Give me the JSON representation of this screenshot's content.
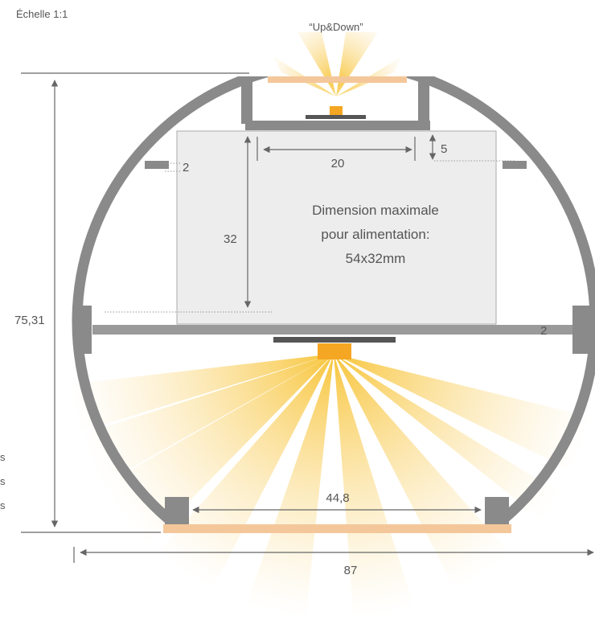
{
  "scale": "Échelle 1:1",
  "title": "“Up&Down”",
  "dimensions": {
    "width_inner": "20",
    "top_gap": "5",
    "slot": "2",
    "height_inner": "32",
    "height_total": "75,31",
    "plate": "2",
    "bottom_width": "44,8",
    "width_total": "87"
  },
  "box_label": [
    "Dimension maximale",
    "pour alimentation:",
    "54x32mm"
  ],
  "edge_text": [
    "s",
    "s",
    "s"
  ]
}
